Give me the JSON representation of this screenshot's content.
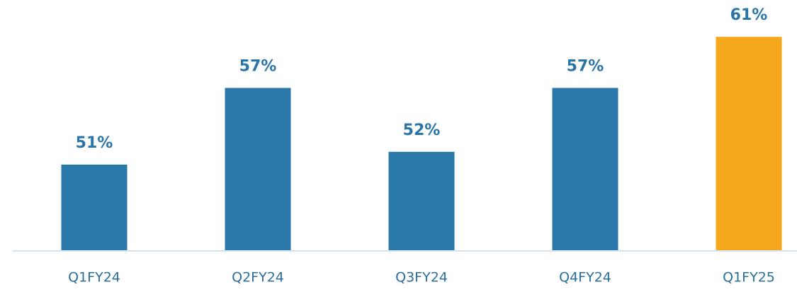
{
  "chart_data": {
    "type": "bar",
    "categories": [
      "Q1FY24",
      "Q2FY24",
      "Q3FY24",
      "Q4FY24",
      "Q1FY25"
    ],
    "values": [
      51,
      57,
      52,
      57,
      61
    ],
    "value_labels": [
      "51%",
      "57%",
      "52%",
      "57%",
      "61%"
    ],
    "colors": [
      "#2a78aa",
      "#2a78aa",
      "#2a78aa",
      "#2a78aa",
      "#f6a81d"
    ],
    "ylim": [
      44.3,
      62.5
    ]
  }
}
